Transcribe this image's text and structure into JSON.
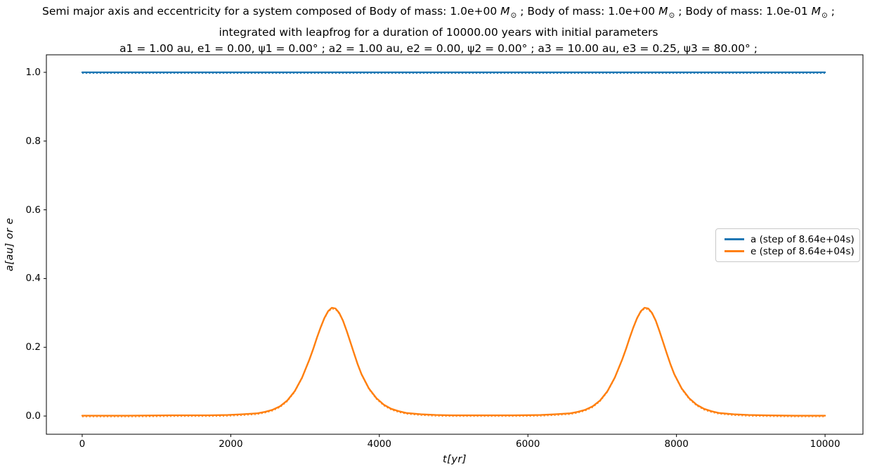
{
  "title": {
    "line1_segments": [
      {
        "text": "Semi major axis and eccentricity for a system composed of Body of mass: 1.0e+00 "
      },
      {
        "text": "M"
      },
      {
        "text": "⊙"
      },
      {
        "text": " ; Body of mass: 1.0e+00 "
      },
      {
        "text": "M"
      },
      {
        "text": "⊙"
      },
      {
        "text": " ; Body of mass: 1.0e-01 "
      },
      {
        "text": "M"
      },
      {
        "text": "⊙"
      },
      {
        "text": " ;"
      }
    ],
    "line2": "integrated with leapfrog for a duration of 10000.00 years with initial parameters",
    "line3": "a1 = 1.00 au, e1 = 0.00, ψ1 = 0.00° ; a2 = 1.00 au, e2 = 0.00, ψ2 = 0.00° ; a3 = 10.00 au, e3 = 0.25, ψ3 = 80.00° ;"
  },
  "chart_data": {
    "type": "line",
    "xlabel": "t[yr]",
    "ylabel": "a[au] or e",
    "xlim": [
      -482,
      10510
    ],
    "ylim": [
      -0.053,
      1.051
    ],
    "x_ticks": [
      0,
      2000,
      4000,
      6000,
      8000,
      10000
    ],
    "x_tick_labels": [
      "0",
      "2000",
      "4000",
      "6000",
      "8000",
      "10000"
    ],
    "y_ticks": [
      0.0,
      0.2,
      0.4,
      0.6,
      0.8,
      1.0
    ],
    "y_tick_labels": [
      "0.0",
      "0.2",
      "0.4",
      "0.6",
      "0.8",
      "1.0"
    ],
    "grid": false,
    "legend_position": "center right",
    "frame_color": "#000000",
    "series": [
      {
        "id": "a",
        "name": "a (step of 8.64e+04s)",
        "color": "#1f77b4",
        "type": "constant",
        "value": 1.0,
        "x_range": [
          0,
          10000
        ]
      },
      {
        "id": "e",
        "name": "e (step of 8.64e+04s)",
        "color": "#ff7f0e",
        "type": "points",
        "points": [
          [
            0,
            0.001
          ],
          [
            600,
            0.001
          ],
          [
            1200,
            0.002
          ],
          [
            1700,
            0.002
          ],
          [
            1960,
            0.003
          ],
          [
            2160,
            0.005
          ],
          [
            2360,
            0.008
          ],
          [
            2460,
            0.012
          ],
          [
            2560,
            0.018
          ],
          [
            2660,
            0.028
          ],
          [
            2760,
            0.045
          ],
          [
            2860,
            0.072
          ],
          [
            2960,
            0.112
          ],
          [
            3060,
            0.165
          ],
          [
            3110,
            0.195
          ],
          [
            3160,
            0.228
          ],
          [
            3210,
            0.258
          ],
          [
            3260,
            0.285
          ],
          [
            3310,
            0.305
          ],
          [
            3360,
            0.315
          ],
          [
            3410,
            0.313
          ],
          [
            3460,
            0.3
          ],
          [
            3510,
            0.278
          ],
          [
            3560,
            0.248
          ],
          [
            3610,
            0.215
          ],
          [
            3660,
            0.182
          ],
          [
            3710,
            0.15
          ],
          [
            3760,
            0.122
          ],
          [
            3860,
            0.08
          ],
          [
            3960,
            0.052
          ],
          [
            4060,
            0.033
          ],
          [
            4160,
            0.021
          ],
          [
            4260,
            0.014
          ],
          [
            4360,
            0.009
          ],
          [
            4560,
            0.005
          ],
          [
            4760,
            0.003
          ],
          [
            5000,
            0.002
          ],
          [
            5400,
            0.002
          ],
          [
            5800,
            0.002
          ],
          [
            6170,
            0.003
          ],
          [
            6370,
            0.005
          ],
          [
            6570,
            0.008
          ],
          [
            6670,
            0.012
          ],
          [
            6770,
            0.018
          ],
          [
            6870,
            0.028
          ],
          [
            6970,
            0.045
          ],
          [
            7070,
            0.072
          ],
          [
            7170,
            0.112
          ],
          [
            7270,
            0.165
          ],
          [
            7320,
            0.195
          ],
          [
            7370,
            0.228
          ],
          [
            7420,
            0.258
          ],
          [
            7470,
            0.285
          ],
          [
            7520,
            0.305
          ],
          [
            7570,
            0.315
          ],
          [
            7620,
            0.313
          ],
          [
            7670,
            0.3
          ],
          [
            7720,
            0.278
          ],
          [
            7770,
            0.248
          ],
          [
            7820,
            0.215
          ],
          [
            7870,
            0.182
          ],
          [
            7920,
            0.15
          ],
          [
            7970,
            0.122
          ],
          [
            8070,
            0.08
          ],
          [
            8170,
            0.052
          ],
          [
            8270,
            0.033
          ],
          [
            8370,
            0.021
          ],
          [
            8470,
            0.014
          ],
          [
            8570,
            0.009
          ],
          [
            8770,
            0.005
          ],
          [
            8970,
            0.003
          ],
          [
            9200,
            0.002
          ],
          [
            9600,
            0.001
          ],
          [
            10000,
            0.001
          ]
        ]
      }
    ]
  }
}
